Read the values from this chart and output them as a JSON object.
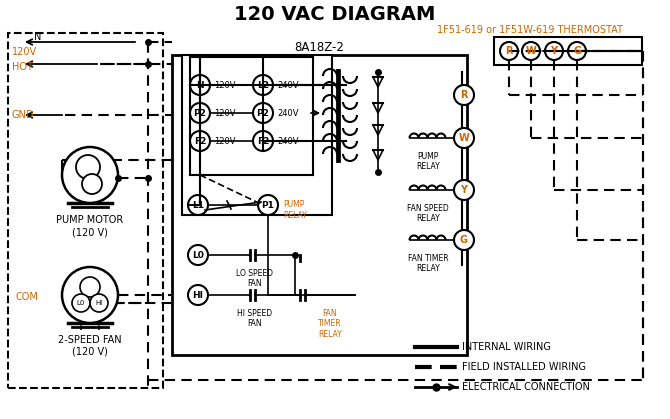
{
  "title": "120 VAC DIAGRAM",
  "bg": "#ffffff",
  "lc": "#000000",
  "oc": "#cc6600",
  "thermostat_label": "1F51-619 or 1F51W-619 THERMOSTAT",
  "controller_label": "8A18Z-2",
  "terminal_labels": [
    "R",
    "W",
    "Y",
    "G"
  ],
  "left_circle_labels": [
    "N",
    "P2",
    "F2"
  ],
  "right_circle_labels": [
    "L2",
    "P2",
    "F2"
  ],
  "left_volts": [
    "120V",
    "120V",
    "120V"
  ],
  "right_volts": [
    "240V",
    "240V",
    "240V"
  ],
  "relay_labels": [
    "PUMP\nRELAY",
    "FAN SPEED\nRELAY",
    "FAN TIMER\nRELAY"
  ]
}
